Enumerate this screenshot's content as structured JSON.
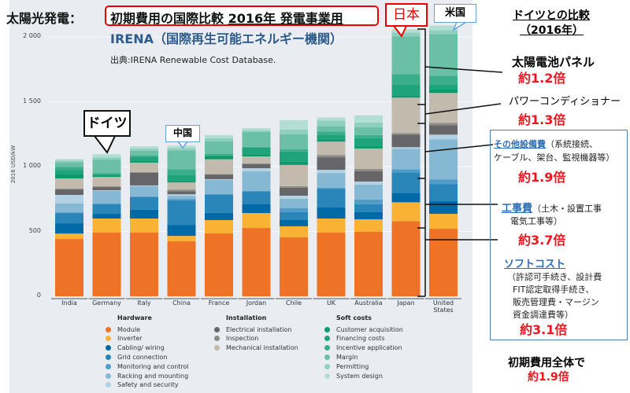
{
  "header": {
    "title_prefix": "太陽光発電：",
    "title_main": "初期費用の国際比較",
    "title_underlined": "2016年 発電事業用",
    "org": "IRENA（国際再生可能エネルギー機関）",
    "source": "出典:IRENA Renewable Cost Database."
  },
  "callouts": {
    "germany": "ドイツ",
    "china": "中国",
    "japan": "日本",
    "us": "米国"
  },
  "comparison": {
    "title": "ドイツとの比較",
    "year": "（2016年）",
    "panel_label": "太陽電池パネル",
    "panel_ratio": "約1.2倍",
    "inverter_label": "パワーコンディショナー",
    "inverter_ratio": "約1.3倍",
    "other_label": "その他設備費",
    "other_desc1": "（系統接続、",
    "other_desc2": "ケーブル、架台、監視機器等）",
    "other_ratio": "約1.9倍",
    "construction_label": "工事費",
    "construction_desc1": "（土木・設置工事",
    "construction_desc2": "電気工事等）",
    "construction_ratio": "約3.7倍",
    "soft_label": "ソフトコスト",
    "soft_desc1": "（許認可手続き、設計費",
    "soft_desc2": "FIT認定取得手続き、",
    "soft_desc3": "販売管理費・マージン",
    "soft_desc4": "資金調達費等）",
    "soft_ratio": "約3.1倍",
    "total_label": "初期費用全体で",
    "total_ratio": "約1.9倍"
  },
  "chart_data": {
    "type": "bar",
    "stacked": true,
    "ylabel": "2016 USD/kW",
    "ylim": [
      0,
      2000
    ],
    "yticks": [
      0,
      500,
      1000,
      1500,
      2000
    ],
    "ytick_labels": [
      "0",
      "500",
      "1 000",
      "1 500",
      "2 000"
    ],
    "categories": [
      "India",
      "Germany",
      "Italy",
      "China",
      "France",
      "Jordan",
      "Chile",
      "UK",
      "Australia",
      "Japan",
      "United States"
    ],
    "legend_groups": [
      {
        "name": "Hardware",
        "items": [
          0,
          1,
          2,
          3,
          4,
          5,
          6
        ]
      },
      {
        "name": "Installation",
        "items": [
          7,
          8,
          9
        ]
      },
      {
        "name": "Soft costs",
        "items": [
          10,
          11,
          12,
          13,
          14,
          15
        ]
      }
    ],
    "series": [
      {
        "name": "Module",
        "color": "#ee7326",
        "values": [
          442,
          491,
          491,
          424,
          485,
          527,
          455,
          491,
          497,
          580,
          521
        ]
      },
      {
        "name": "Inverter",
        "color": "#f9b233",
        "values": [
          42,
          109,
          109,
          42,
          103,
          115,
          85,
          109,
          97,
          145,
          115
        ]
      },
      {
        "name": "Cabling/ wiring",
        "color": "#0069a6",
        "values": [
          79,
          36,
          67,
          85,
          55,
          67,
          48,
          85,
          55,
          73,
          97
        ]
      },
      {
        "name": "Grid connection",
        "color": "#2a86b8",
        "values": [
          79,
          73,
          97,
          188,
          139,
          97,
          61,
          145,
          61,
          158,
          133
        ]
      },
      {
        "name": "Monitoring and control",
        "color": "#4f9cc8",
        "values": [
          6,
          6,
          6,
          12,
          6,
          6,
          30,
          6,
          36,
          24,
          36
        ]
      },
      {
        "name": "Racking and mounting",
        "color": "#86b7d3",
        "values": [
          67,
          97,
          79,
          24,
          109,
          152,
          73,
          115,
          115,
          158,
          309
        ]
      },
      {
        "name": "Safety and security",
        "color": "#b2d2e3",
        "values": [
          67,
          6,
          6,
          12,
          6,
          24,
          24,
          24,
          24,
          12,
          36
        ]
      },
      {
        "name": "Electrical installation",
        "color": "#666669",
        "values": [
          42,
          24,
          97,
          24,
          36,
          30,
          61,
          97,
          79,
          97,
          73
        ]
      },
      {
        "name": "Inspection",
        "color": "#8e8a85",
        "values": [
          6,
          6,
          6,
          12,
          3,
          6,
          12,
          18,
          18,
          12,
          18
        ]
      },
      {
        "name": "Mechanical installation",
        "color": "#c2bbad",
        "values": [
          79,
          73,
          73,
          55,
          115,
          55,
          164,
          103,
          158,
          273,
          230
        ]
      },
      {
        "name": "Customer acquisition",
        "color": "#079a6b",
        "values": [
          30,
          12,
          12,
          12,
          24,
          12,
          24,
          18,
          18,
          18,
          30
        ]
      },
      {
        "name": "Financing costs",
        "color": "#1ea37a",
        "values": [
          36,
          6,
          30,
          48,
          6,
          55,
          79,
          36,
          61,
          85,
          36
        ]
      },
      {
        "name": "Incentive application",
        "color": "#3aae88",
        "values": [
          24,
          12,
          12,
          42,
          12,
          6,
          18,
          24,
          24,
          79,
          67
        ]
      },
      {
        "name": "Margin",
        "color": "#6abfa5",
        "values": [
          36,
          103,
          36,
          145,
          97,
          115,
          115,
          42,
          61,
          291,
          321
        ]
      },
      {
        "name": "Permitting",
        "color": "#8fd0bc",
        "values": [
          12,
          18,
          18,
          18,
          24,
          12,
          36,
          42,
          36,
          30,
          30
        ]
      },
      {
        "name": "System design",
        "color": "#b2ded3",
        "values": [
          12,
          24,
          18,
          18,
          24,
          18,
          73,
          24,
          55,
          24,
          36
        ]
      }
    ]
  }
}
